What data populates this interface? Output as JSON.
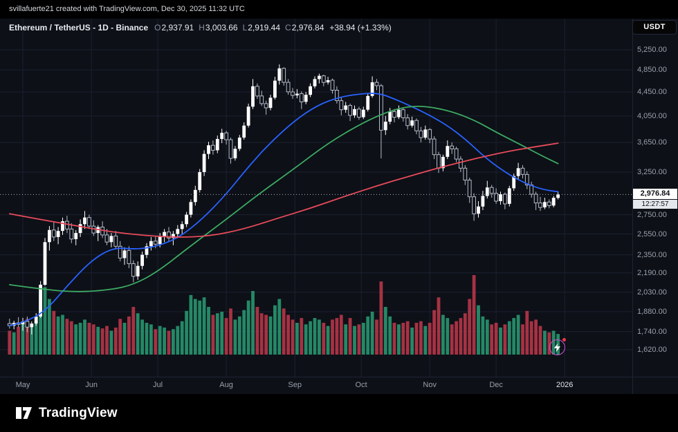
{
  "attribution_bar": {
    "text": "svillafuerte21 created with TradingView.com, Dec 30, 2025 11:32 UTC"
  },
  "header": {
    "symbol_title": "Ethereum / TetherUS - 1D - Binance",
    "ohlc": [
      {
        "label": "O",
        "value": "2,937.91"
      },
      {
        "label": "H",
        "value": "3,003.66"
      },
      {
        "label": "L",
        "value": "2,919.44"
      },
      {
        "label": "C",
        "value": "2,976.84"
      }
    ],
    "change": "+38.94 (+1.33%)"
  },
  "right_axis": {
    "currency_badge": "USDT",
    "labels": [
      {
        "text": "5,250.00",
        "price": 5250
      },
      {
        "text": "4,850.00",
        "price": 4850
      },
      {
        "text": "4,450.00",
        "price": 4450
      },
      {
        "text": "4,050.00",
        "price": 4050
      },
      {
        "text": "3,650.00",
        "price": 3650
      },
      {
        "text": "3,250.00",
        "price": 3250
      },
      {
        "text": "2,750.00",
        "price": 2750
      },
      {
        "text": "2,550.00",
        "price": 2550
      },
      {
        "text": "2,350.00",
        "price": 2350
      },
      {
        "text": "2,190.00",
        "price": 2190
      },
      {
        "text": "2,030.00",
        "price": 2030
      },
      {
        "text": "1,880.00",
        "price": 1880
      },
      {
        "text": "1,740.00",
        "price": 1740
      },
      {
        "text": "1,620.00",
        "price": 1620
      }
    ],
    "price_badge": {
      "text": "2,976.84",
      "countdown": "12:27:57"
    }
  },
  "time_axis": {
    "labels": [
      {
        "text": "May",
        "day": 0
      },
      {
        "text": "Jun",
        "day": 31
      },
      {
        "text": "Jul",
        "day": 61
      },
      {
        "text": "Aug",
        "day": 92
      },
      {
        "text": "Sep",
        "day": 123
      },
      {
        "text": "Oct",
        "day": 153
      },
      {
        "text": "Nov",
        "day": 184
      },
      {
        "text": "Dec",
        "day": 214
      },
      {
        "text": "2026",
        "day": 245,
        "highlight": true
      }
    ]
  },
  "footer": {
    "brand": "TradingView"
  },
  "colors": {
    "background": "#0d1017",
    "panel_black": "#000000",
    "grid": "#1b2130",
    "axis_text": "#9aa0aa",
    "text_primary": "#e8eaf0",
    "candle_up": "#ffffff",
    "candle_down_fill": "#0d1017",
    "candle_down_stroke": "#b6bdc9",
    "volume_up": "#2a9d74",
    "volume_down": "#c0394b",
    "ma_fast": "#2962ff",
    "ma_mid": "#3dab63",
    "ma_slow": "#ea4b5b",
    "price_line": "#b2b5be",
    "price_badge_bg": "#ffffff",
    "price_badge_text": "#0c0f16",
    "countdown_bg": "#e4e7ec",
    "flash_ring": "#d24fd8",
    "alert_dot": "#f23645"
  },
  "chart_data": {
    "type": "candlestick+volume",
    "title": "Ethereum / TetherUS - 1D - Binance",
    "symbol": "ETHUSDT",
    "interval": "1D",
    "price_scale": "logarithmic",
    "x_unit": "days since 2025-05-01 (candles sampled every 2 days)",
    "ylim": [
      1500,
      5400
    ],
    "xlim_days": [
      -8,
      276
    ],
    "grid": true,
    "last_price": 2976.84,
    "volume_unit": "relative 0-100",
    "candles_format": [
      "day",
      "open",
      "high",
      "low",
      "close",
      "volume"
    ],
    "candles": [
      [
        -6,
        1795,
        1830,
        1760,
        1780,
        30
      ],
      [
        -4,
        1780,
        1815,
        1755,
        1800,
        28
      ],
      [
        -2,
        1800,
        1840,
        1770,
        1790,
        35
      ],
      [
        0,
        1790,
        1835,
        1745,
        1810,
        40
      ],
      [
        2,
        1810,
        1845,
        1735,
        1770,
        45
      ],
      [
        4,
        1770,
        1810,
        1720,
        1795,
        38
      ],
      [
        6,
        1795,
        1870,
        1780,
        1845,
        42
      ],
      [
        8,
        1845,
        2120,
        1835,
        2090,
        78
      ],
      [
        10,
        2090,
        2510,
        2080,
        2470,
        85
      ],
      [
        12,
        2470,
        2630,
        2390,
        2590,
        70
      ],
      [
        14,
        2590,
        2680,
        2480,
        2520,
        55
      ],
      [
        16,
        2520,
        2620,
        2450,
        2580,
        48
      ],
      [
        18,
        2580,
        2720,
        2540,
        2680,
        50
      ],
      [
        20,
        2680,
        2740,
        2560,
        2600,
        45
      ],
      [
        22,
        2600,
        2660,
        2460,
        2500,
        42
      ],
      [
        24,
        2500,
        2590,
        2440,
        2560,
        38
      ],
      [
        26,
        2560,
        2700,
        2520,
        2650,
        40
      ],
      [
        28,
        2650,
        2790,
        2600,
        2720,
        44
      ],
      [
        30,
        2720,
        2750,
        2600,
        2630,
        40
      ],
      [
        32,
        2630,
        2690,
        2530,
        2560,
        38
      ],
      [
        34,
        2560,
        2640,
        2480,
        2620,
        35
      ],
      [
        36,
        2620,
        2680,
        2510,
        2540,
        33
      ],
      [
        38,
        2540,
        2600,
        2440,
        2470,
        36
      ],
      [
        40,
        2470,
        2560,
        2420,
        2530,
        30
      ],
      [
        42,
        2530,
        2580,
        2400,
        2430,
        34
      ],
      [
        44,
        2430,
        2480,
        2290,
        2320,
        45
      ],
      [
        46,
        2320,
        2420,
        2260,
        2390,
        40
      ],
      [
        48,
        2390,
        2430,
        2230,
        2270,
        48
      ],
      [
        50,
        2270,
        2300,
        2110,
        2160,
        60
      ],
      [
        52,
        2160,
        2290,
        2130,
        2250,
        52
      ],
      [
        54,
        2250,
        2380,
        2220,
        2350,
        44
      ],
      [
        56,
        2350,
        2460,
        2320,
        2430,
        40
      ],
      [
        58,
        2430,
        2520,
        2390,
        2480,
        38
      ],
      [
        60,
        2480,
        2530,
        2410,
        2450,
        32
      ],
      [
        62,
        2450,
        2560,
        2420,
        2530,
        36
      ],
      [
        64,
        2530,
        2600,
        2470,
        2570,
        34
      ],
      [
        66,
        2570,
        2620,
        2480,
        2510,
        30
      ],
      [
        68,
        2510,
        2580,
        2440,
        2550,
        32
      ],
      [
        70,
        2550,
        2640,
        2510,
        2600,
        36
      ],
      [
        72,
        2600,
        2680,
        2550,
        2650,
        42
      ],
      [
        74,
        2650,
        2780,
        2620,
        2750,
        55
      ],
      [
        76,
        2750,
        2920,
        2720,
        2890,
        75
      ],
      [
        78,
        2890,
        3080,
        2850,
        3030,
        70
      ],
      [
        80,
        3030,
        3290,
        3000,
        3250,
        68
      ],
      [
        82,
        3250,
        3540,
        3200,
        3490,
        72
      ],
      [
        84,
        3490,
        3660,
        3420,
        3610,
        60
      ],
      [
        86,
        3610,
        3680,
        3480,
        3540,
        50
      ],
      [
        88,
        3540,
        3750,
        3500,
        3700,
        52
      ],
      [
        90,
        3700,
        3850,
        3640,
        3790,
        54
      ],
      [
        92,
        3790,
        3820,
        3620,
        3690,
        46
      ],
      [
        94,
        3690,
        3720,
        3360,
        3430,
        58
      ],
      [
        96,
        3430,
        3600,
        3400,
        3560,
        44
      ],
      [
        98,
        3560,
        3760,
        3530,
        3720,
        48
      ],
      [
        100,
        3720,
        3950,
        3690,
        3900,
        56
      ],
      [
        102,
        3900,
        4250,
        3870,
        4200,
        68
      ],
      [
        104,
        4200,
        4680,
        4160,
        4550,
        80
      ],
      [
        106,
        4550,
        4600,
        4330,
        4380,
        60
      ],
      [
        108,
        4380,
        4470,
        4210,
        4250,
        52
      ],
      [
        110,
        4250,
        4300,
        4070,
        4180,
        50
      ],
      [
        112,
        4180,
        4400,
        4140,
        4350,
        48
      ],
      [
        114,
        4350,
        4720,
        4320,
        4650,
        62
      ],
      [
        116,
        4650,
        4956,
        4580,
        4880,
        70
      ],
      [
        118,
        4880,
        4900,
        4560,
        4620,
        58
      ],
      [
        120,
        4620,
        4680,
        4400,
        4450,
        50
      ],
      [
        122,
        4450,
        4520,
        4330,
        4390,
        44
      ],
      [
        124,
        4390,
        4500,
        4340,
        4420,
        40
      ],
      [
        126,
        4420,
        4460,
        4160,
        4280,
        46
      ],
      [
        128,
        4280,
        4450,
        4240,
        4400,
        38
      ],
      [
        130,
        4400,
        4600,
        4360,
        4550,
        42
      ],
      [
        132,
        4550,
        4730,
        4510,
        4680,
        46
      ],
      [
        134,
        4680,
        4780,
        4600,
        4740,
        44
      ],
      [
        136,
        4740,
        4760,
        4550,
        4620,
        40
      ],
      [
        138,
        4620,
        4720,
        4580,
        4660,
        36
      ],
      [
        140,
        4660,
        4690,
        4420,
        4480,
        44
      ],
      [
        142,
        4480,
        4550,
        4250,
        4300,
        46
      ],
      [
        144,
        4300,
        4360,
        4060,
        4150,
        50
      ],
      [
        146,
        4150,
        4280,
        4100,
        4220,
        38
      ],
      [
        148,
        4220,
        4250,
        3970,
        4060,
        46
      ],
      [
        150,
        4060,
        4220,
        4020,
        4160,
        36
      ],
      [
        152,
        4160,
        4200,
        3990,
        4030,
        38
      ],
      [
        154,
        4030,
        4200,
        4000,
        4150,
        40
      ],
      [
        156,
        4150,
        4420,
        4120,
        4380,
        48
      ],
      [
        158,
        4380,
        4730,
        4350,
        4620,
        54
      ],
      [
        160,
        4620,
        4680,
        4480,
        4560,
        44
      ],
      [
        162,
        4560,
        4590,
        3430,
        3830,
        92
      ],
      [
        164,
        3830,
        4050,
        3760,
        3960,
        60
      ],
      [
        166,
        3960,
        4180,
        3920,
        4120,
        48
      ],
      [
        168,
        4120,
        4160,
        3950,
        4030,
        40
      ],
      [
        170,
        4030,
        4220,
        4000,
        4150,
        38
      ],
      [
        172,
        4150,
        4180,
        3960,
        4020,
        40
      ],
      [
        174,
        4020,
        4080,
        3840,
        3900,
        42
      ],
      [
        176,
        3900,
        4040,
        3870,
        3980,
        34
      ],
      [
        178,
        3980,
        4010,
        3770,
        3820,
        40
      ],
      [
        180,
        3820,
        3880,
        3650,
        3720,
        42
      ],
      [
        182,
        3720,
        3900,
        3690,
        3840,
        36
      ],
      [
        184,
        3840,
        3860,
        3640,
        3700,
        40
      ],
      [
        186,
        3700,
        3740,
        3420,
        3480,
        56
      ],
      [
        188,
        3480,
        3520,
        3240,
        3300,
        72
      ],
      [
        190,
        3300,
        3480,
        3260,
        3450,
        50
      ],
      [
        192,
        3450,
        3680,
        3420,
        3600,
        46
      ],
      [
        194,
        3600,
        3650,
        3490,
        3560,
        38
      ],
      [
        196,
        3560,
        3590,
        3380,
        3420,
        42
      ],
      [
        198,
        3420,
        3460,
        3250,
        3300,
        46
      ],
      [
        200,
        3300,
        3340,
        3090,
        3150,
        52
      ],
      [
        202,
        3150,
        3180,
        2880,
        2950,
        70
      ],
      [
        204,
        2950,
        2990,
        2685,
        2760,
        100
      ],
      [
        206,
        2760,
        2900,
        2720,
        2840,
        62
      ],
      [
        208,
        2840,
        3020,
        2800,
        2960,
        48
      ],
      [
        210,
        2960,
        3140,
        2930,
        3060,
        44
      ],
      [
        212,
        3060,
        3090,
        2940,
        2990,
        38
      ],
      [
        214,
        2990,
        3050,
        2870,
        2900,
        40
      ],
      [
        216,
        2900,
        3010,
        2860,
        2980,
        34
      ],
      [
        218,
        2980,
        3000,
        2810,
        2870,
        38
      ],
      [
        220,
        2870,
        3080,
        2840,
        3050,
        42
      ],
      [
        222,
        3050,
        3230,
        3020,
        3200,
        46
      ],
      [
        224,
        3200,
        3370,
        3160,
        3300,
        50
      ],
      [
        226,
        3300,
        3340,
        3170,
        3220,
        38
      ],
      [
        228,
        3220,
        3260,
        3040,
        3090,
        55
      ],
      [
        230,
        3090,
        3130,
        2940,
        2980,
        42
      ],
      [
        232,
        2980,
        3010,
        2800,
        2880,
        44
      ],
      [
        234,
        2880,
        2950,
        2790,
        2830,
        36
      ],
      [
        236,
        2830,
        2940,
        2810,
        2890,
        30
      ],
      [
        238,
        2890,
        2920,
        2820,
        2850,
        28
      ],
      [
        240,
        2850,
        2960,
        2830,
        2938,
        30
      ],
      [
        242,
        2937.91,
        3003.66,
        2919.44,
        2976.84,
        26
      ]
    ],
    "ma_lines": [
      {
        "name": "ma-fast-blue",
        "color": "#2962ff",
        "points": [
          [
            -6,
            1780
          ],
          [
            0,
            1800
          ],
          [
            10,
            1880
          ],
          [
            20,
            2080
          ],
          [
            31,
            2300
          ],
          [
            41,
            2420
          ],
          [
            51,
            2400
          ],
          [
            61,
            2430
          ],
          [
            71,
            2520
          ],
          [
            81,
            2700
          ],
          [
            92,
            2980
          ],
          [
            102,
            3320
          ],
          [
            112,
            3650
          ],
          [
            123,
            3980
          ],
          [
            133,
            4220
          ],
          [
            143,
            4360
          ],
          [
            153,
            4420
          ],
          [
            161,
            4430
          ],
          [
            168,
            4330
          ],
          [
            176,
            4200
          ],
          [
            184,
            4060
          ],
          [
            192,
            3900
          ],
          [
            200,
            3700
          ],
          [
            208,
            3470
          ],
          [
            214,
            3330
          ],
          [
            222,
            3180
          ],
          [
            230,
            3080
          ],
          [
            236,
            3030
          ],
          [
            242,
            3010
          ]
        ]
      },
      {
        "name": "ma-mid-green",
        "color": "#3dab63",
        "points": [
          [
            -6,
            2090
          ],
          [
            10,
            2050
          ],
          [
            25,
            2030
          ],
          [
            40,
            2050
          ],
          [
            50,
            2090
          ],
          [
            61,
            2200
          ],
          [
            75,
            2420
          ],
          [
            92,
            2700
          ],
          [
            105,
            2950
          ],
          [
            123,
            3300
          ],
          [
            138,
            3640
          ],
          [
            153,
            3930
          ],
          [
            165,
            4120
          ],
          [
            175,
            4210
          ],
          [
            184,
            4200
          ],
          [
            195,
            4110
          ],
          [
            205,
            3970
          ],
          [
            214,
            3800
          ],
          [
            225,
            3620
          ],
          [
            235,
            3460
          ],
          [
            242,
            3360
          ]
        ]
      },
      {
        "name": "ma-slow-red",
        "color": "#ea4b5b",
        "points": [
          [
            -6,
            2760
          ],
          [
            10,
            2690
          ],
          [
            25,
            2630
          ],
          [
            40,
            2570
          ],
          [
            55,
            2535
          ],
          [
            70,
            2515
          ],
          [
            85,
            2530
          ],
          [
            100,
            2600
          ],
          [
            115,
            2710
          ],
          [
            130,
            2820
          ],
          [
            145,
            2950
          ],
          [
            160,
            3080
          ],
          [
            175,
            3200
          ],
          [
            190,
            3320
          ],
          [
            205,
            3430
          ],
          [
            220,
            3530
          ],
          [
            232,
            3590
          ],
          [
            242,
            3640
          ]
        ]
      }
    ]
  }
}
